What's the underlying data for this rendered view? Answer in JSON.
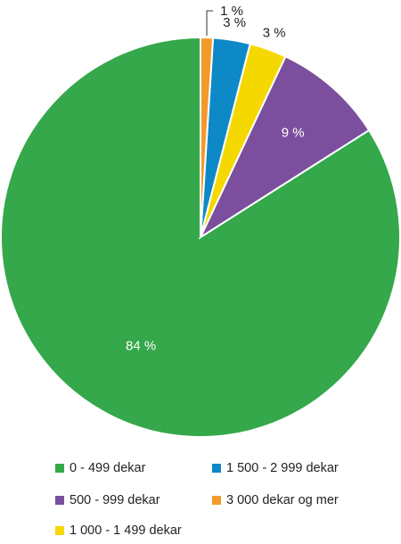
{
  "chart_data": {
    "type": "pie",
    "slices": [
      {
        "label": "0 - 499 dekar",
        "value": 84,
        "display": "84 %",
        "color": "#34a84a"
      },
      {
        "label": "500 - 999 dekar",
        "value": 9,
        "display": "9 %",
        "color": "#7b4f9d"
      },
      {
        "label": "1 000 - 1 499 dekar",
        "value": 3,
        "display": "3 %",
        "color": "#f5d800"
      },
      {
        "label": "1 500 - 2 999 dekar",
        "value": 3,
        "display": "3 %",
        "color": "#0e89c8"
      },
      {
        "label": "3 000 dekar og mer",
        "value": 1,
        "display": "1 %",
        "color": "#f39a2c"
      }
    ],
    "legend_position": "bottom"
  }
}
